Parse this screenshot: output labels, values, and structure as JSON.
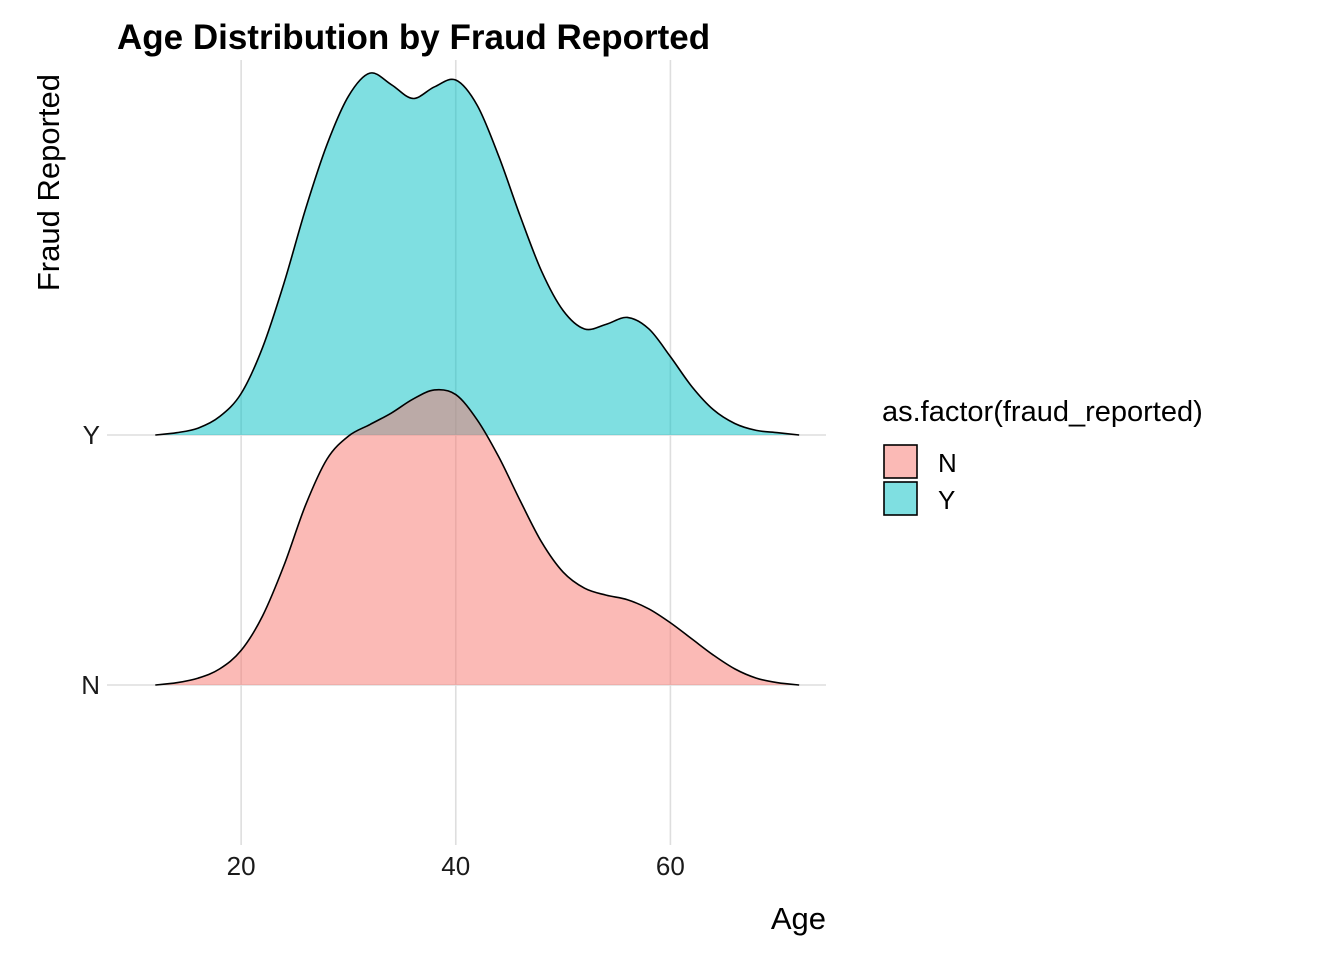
{
  "chart_data": {
    "type": "area",
    "subtype": "ridgeline-density",
    "title": "Age Distribution by Fraud Reported",
    "xlabel": "Age",
    "ylabel": "Fraud Reported",
    "xlim": [
      7.5,
      74.5
    ],
    "xticks": [
      20,
      40,
      60
    ],
    "categories": [
      "N",
      "Y"
    ],
    "legend": {
      "title": "as.factor(fraud_reported)",
      "placement": "right",
      "items": [
        {
          "label": "N",
          "color": "#F8766D"
        },
        {
          "label": "Y",
          "color": "#00BFC4"
        }
      ]
    },
    "fill_opacity": 0.5,
    "grid": true,
    "ridge_scale": 1.5,
    "series": [
      {
        "name": "N",
        "color": "#F8766D",
        "x": [
          12,
          14,
          16,
          18,
          20,
          22,
          24,
          26,
          28,
          30,
          32,
          34,
          36,
          38,
          40,
          42,
          44,
          46,
          48,
          50,
          52,
          54,
          56,
          58,
          60,
          62,
          64,
          66,
          68,
          70,
          72
        ],
        "density": [
          0.0,
          0.001,
          0.003,
          0.007,
          0.015,
          0.03,
          0.052,
          0.078,
          0.098,
          0.108,
          0.113,
          0.118,
          0.124,
          0.128,
          0.126,
          0.115,
          0.099,
          0.08,
          0.062,
          0.049,
          0.042,
          0.039,
          0.037,
          0.033,
          0.027,
          0.02,
          0.013,
          0.007,
          0.003,
          0.001,
          0.0
        ]
      },
      {
        "name": "Y",
        "color": "#00BFC4",
        "x": [
          12,
          14,
          16,
          18,
          20,
          22,
          24,
          26,
          28,
          30,
          32,
          34,
          36,
          38,
          40,
          42,
          44,
          46,
          48,
          50,
          52,
          54,
          56,
          58,
          60,
          62,
          64,
          66,
          68,
          70,
          72
        ],
        "density": [
          0.0,
          0.001,
          0.003,
          0.008,
          0.018,
          0.038,
          0.066,
          0.098,
          0.126,
          0.147,
          0.157,
          0.152,
          0.146,
          0.151,
          0.154,
          0.143,
          0.121,
          0.095,
          0.071,
          0.054,
          0.046,
          0.048,
          0.051,
          0.046,
          0.034,
          0.021,
          0.011,
          0.005,
          0.002,
          0.001,
          0.0
        ]
      }
    ]
  }
}
